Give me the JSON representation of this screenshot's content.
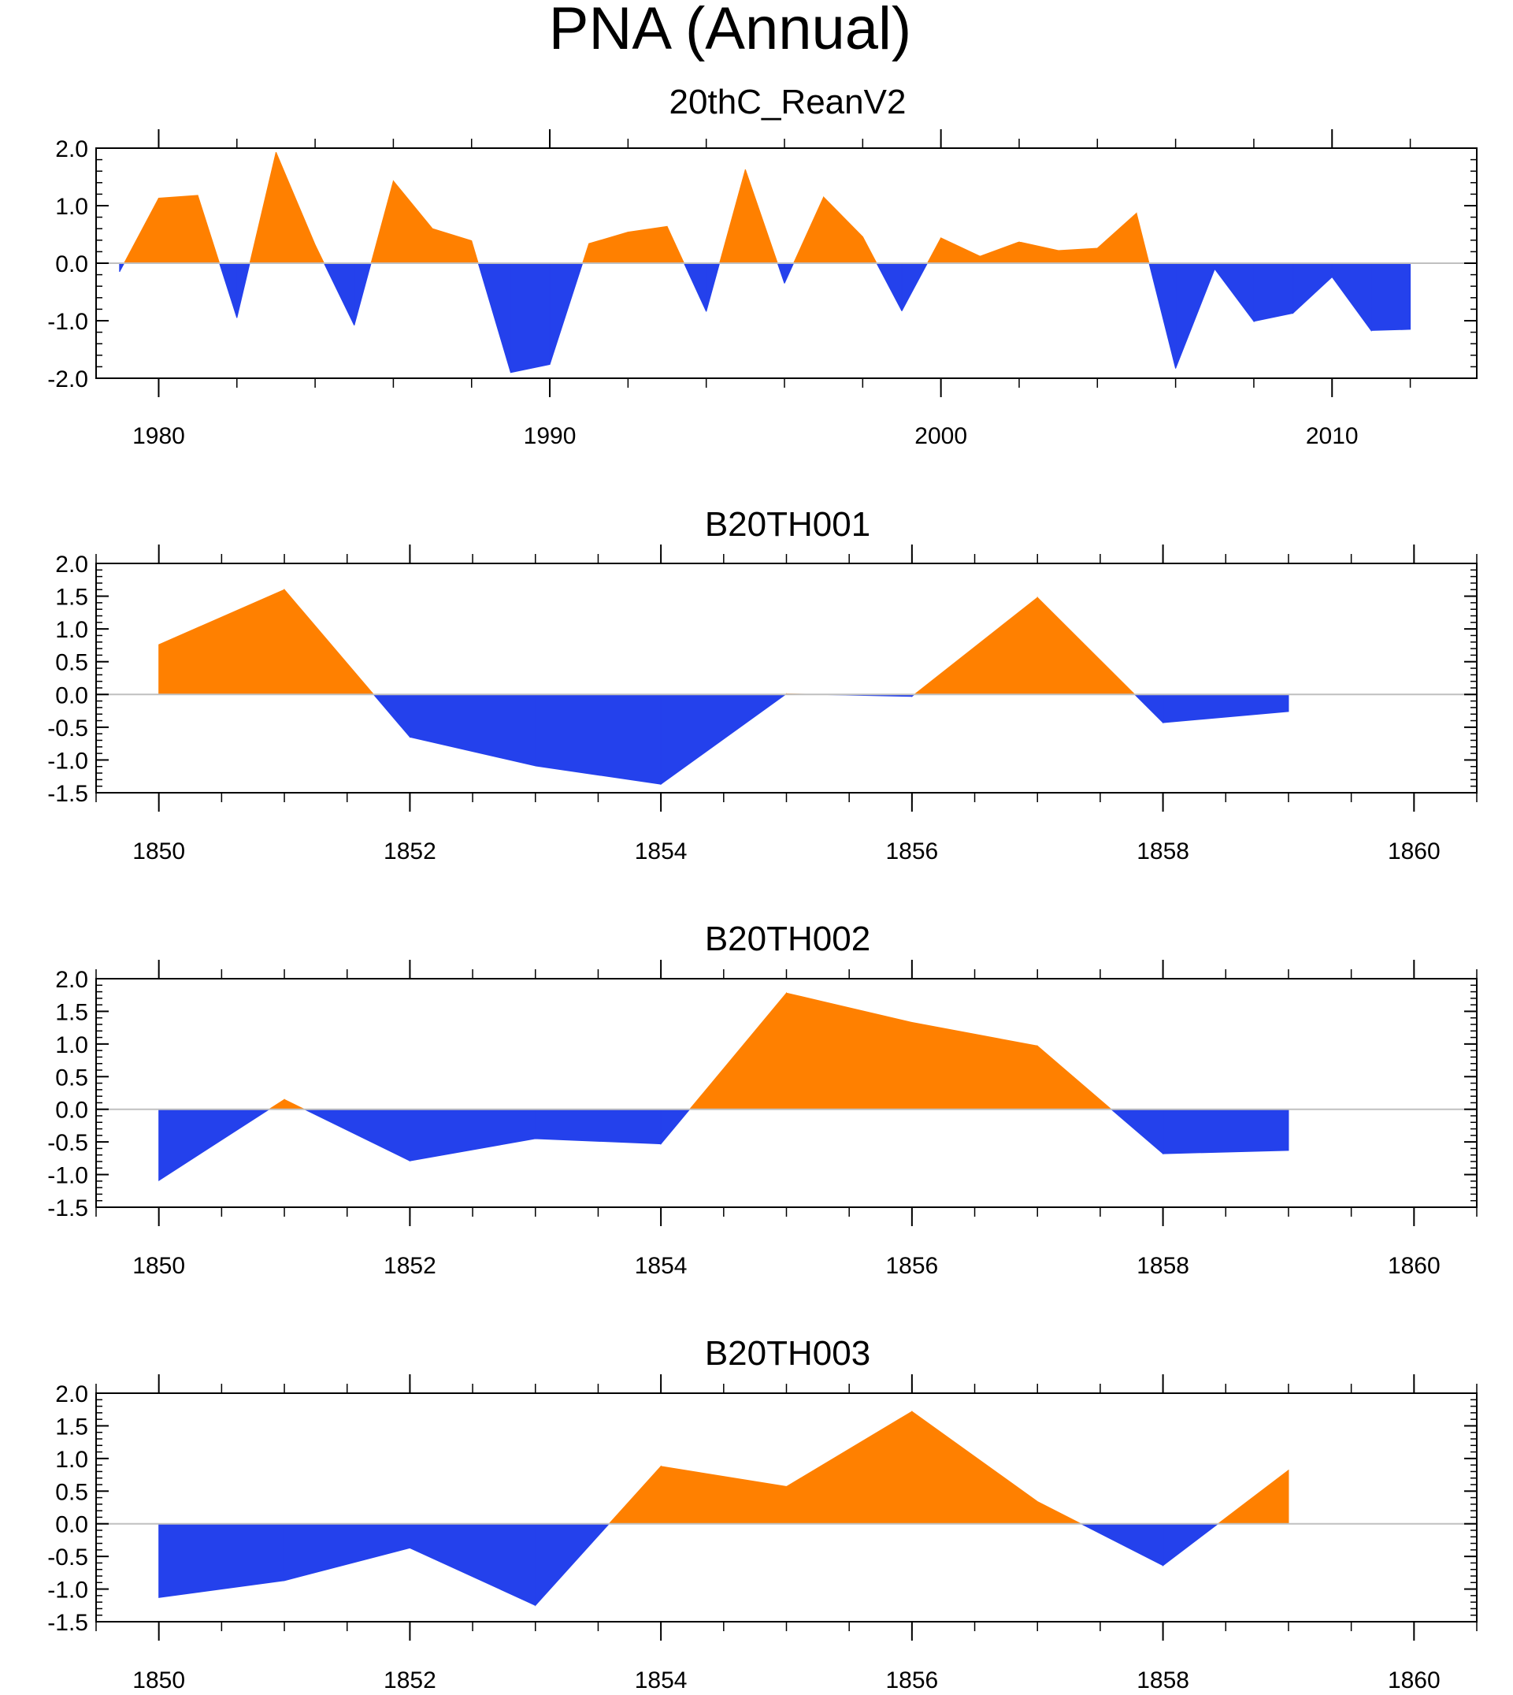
{
  "figure": {
    "title": "PNA (Annual)",
    "colors": {
      "positive": "#ff8000",
      "negative": "#2441ec",
      "axis": "#000000",
      "zero_line": "#c0c0c0"
    }
  },
  "chart_data": [
    {
      "type": "area",
      "title": "20thC_ReanV2",
      "xlabel": "",
      "ylabel": "",
      "x": [
        1979,
        1980,
        1981,
        1982,
        1983,
        1984,
        1985,
        1986,
        1987,
        1988,
        1989,
        1990,
        1991,
        1992,
        1993,
        1994,
        1995,
        1996,
        1997,
        1998,
        1999,
        2000,
        2001,
        2002,
        2003,
        2004,
        2005,
        2006,
        2007,
        2008,
        2009,
        2010,
        2011,
        2012
      ],
      "values": [
        -0.15,
        1.13,
        1.18,
        -0.95,
        1.93,
        0.32,
        -1.08,
        1.43,
        0.6,
        0.39,
        -1.9,
        -1.76,
        0.34,
        0.54,
        0.64,
        -0.84,
        1.63,
        -0.35,
        1.15,
        0.46,
        -0.83,
        0.44,
        0.12,
        0.37,
        0.22,
        0.26,
        0.87,
        -1.83,
        -0.1,
        -1.01,
        -0.87,
        -0.24,
        -1.17,
        -1.15
      ],
      "xlim": [
        1978.4,
        2013.7
      ],
      "ylim": [
        -2.0,
        2.0
      ],
      "x_ticks": [
        1980,
        1990,
        2000,
        2010
      ],
      "x_tick_labels": [
        "1980",
        "1990",
        "2000",
        "2010"
      ],
      "y_ticks": [
        2.0,
        1.0,
        0.0,
        -1.0,
        -2.0
      ],
      "y_tick_labels": [
        "2.0",
        "1.0",
        "0.0",
        "-1.0",
        "-2.0"
      ],
      "y_minor_step": 0.2,
      "x_minor_step": 2
    },
    {
      "type": "area",
      "title": "B20TH001",
      "xlabel": "",
      "ylabel": "",
      "x": [
        1850,
        1851,
        1852,
        1853,
        1854,
        1855,
        1856,
        1857,
        1858,
        1859
      ],
      "values": [
        0.76,
        1.6,
        -0.65,
        -1.09,
        -1.37,
        0.01,
        -0.03,
        1.48,
        -0.43,
        -0.26
      ],
      "xlim": [
        1849.5,
        1860.5
      ],
      "ylim": [
        -1.5,
        2.0
      ],
      "x_ticks": [
        1850,
        1852,
        1854,
        1856,
        1858,
        1860
      ],
      "x_tick_labels": [
        "1850",
        "1852",
        "1854",
        "1856",
        "1858",
        "1860"
      ],
      "y_ticks": [
        2.0,
        1.5,
        1.0,
        0.5,
        0.0,
        -0.5,
        -1.0,
        -1.5
      ],
      "y_tick_labels": [
        "2.0",
        "1.5",
        "1.0",
        "0.5",
        "0.0",
        "-0.5",
        "-1.0",
        "-1.5"
      ],
      "y_minor_step": 0.1,
      "x_minor_step": 0.5
    },
    {
      "type": "area",
      "title": "B20TH002",
      "xlabel": "",
      "ylabel": "",
      "x": [
        1850,
        1851,
        1852,
        1853,
        1854,
        1855,
        1856,
        1857,
        1858,
        1859
      ],
      "values": [
        -1.09,
        0.15,
        -0.79,
        -0.45,
        -0.53,
        1.78,
        1.33,
        0.97,
        -0.68,
        -0.63
      ],
      "xlim": [
        1849.5,
        1860.5
      ],
      "ylim": [
        -1.5,
        2.0
      ],
      "x_ticks": [
        1850,
        1852,
        1854,
        1856,
        1858,
        1860
      ],
      "x_tick_labels": [
        "1850",
        "1852",
        "1854",
        "1856",
        "1858",
        "1860"
      ],
      "y_ticks": [
        2.0,
        1.5,
        1.0,
        0.5,
        0.0,
        -0.5,
        -1.0,
        -1.5
      ],
      "y_tick_labels": [
        "2.0",
        "1.5",
        "1.0",
        "0.5",
        "0.0",
        "-0.5",
        "-1.0",
        "-1.5"
      ],
      "y_minor_step": 0.1,
      "x_minor_step": 0.5
    },
    {
      "type": "area",
      "title": "B20TH003",
      "xlabel": "",
      "ylabel": "",
      "x": [
        1850,
        1851,
        1852,
        1853,
        1854,
        1855,
        1856,
        1857,
        1858,
        1859
      ],
      "values": [
        -1.13,
        -0.87,
        -0.37,
        -1.25,
        0.88,
        0.57,
        1.72,
        0.34,
        -0.64,
        0.82
      ],
      "xlim": [
        1849.5,
        1860.5
      ],
      "ylim": [
        -1.5,
        2.0
      ],
      "x_ticks": [
        1850,
        1852,
        1854,
        1856,
        1858,
        1860
      ],
      "x_tick_labels": [
        "1850",
        "1852",
        "1854",
        "1856",
        "1858",
        "1860"
      ],
      "y_ticks": [
        2.0,
        1.5,
        1.0,
        0.5,
        0.0,
        -0.5,
        -1.0,
        -1.5
      ],
      "y_tick_labels": [
        "2.0",
        "1.5",
        "1.0",
        "0.5",
        "0.0",
        "-0.5",
        "-1.0",
        "-1.5"
      ],
      "y_minor_step": 0.1,
      "x_minor_step": 0.5
    }
  ]
}
